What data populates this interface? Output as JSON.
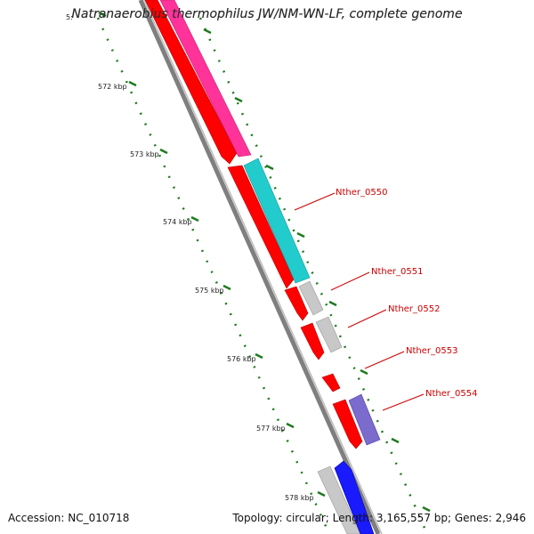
{
  "title": "Natranaerobius thermophilus JW/NM-WN-LF, complete genome",
  "accession": "Accession: NC_010718",
  "summary": "Topology: circular; Length: 3,165,557 bp; Genes: 2,946",
  "colors": {
    "backbone": "#7f7f7f",
    "tick": "#1f7a1f",
    "cds_forward_red": "#ff0000",
    "magenta": "#ff3399",
    "cyan": "#22cccc",
    "gray": "#c8c8c8",
    "purple": "#7a6bcc",
    "blue": "#1a1aff",
    "label": "#cc0000"
  },
  "ticks": [
    {
      "label": "5:"
    },
    {
      "label": "572 kbp"
    },
    {
      "label": "573 kbp"
    },
    {
      "label": "574 kbp"
    },
    {
      "label": "575 kbp"
    },
    {
      "label": "576 kbp"
    },
    {
      "label": "577 kbp"
    },
    {
      "label": "578 kbp"
    }
  ],
  "gene_labels": [
    {
      "label": "Nther_0550"
    },
    {
      "label": "Nther_0551"
    },
    {
      "label": "Nther_0552"
    },
    {
      "label": "Nther_0553"
    },
    {
      "label": "Nther_0554"
    }
  ]
}
